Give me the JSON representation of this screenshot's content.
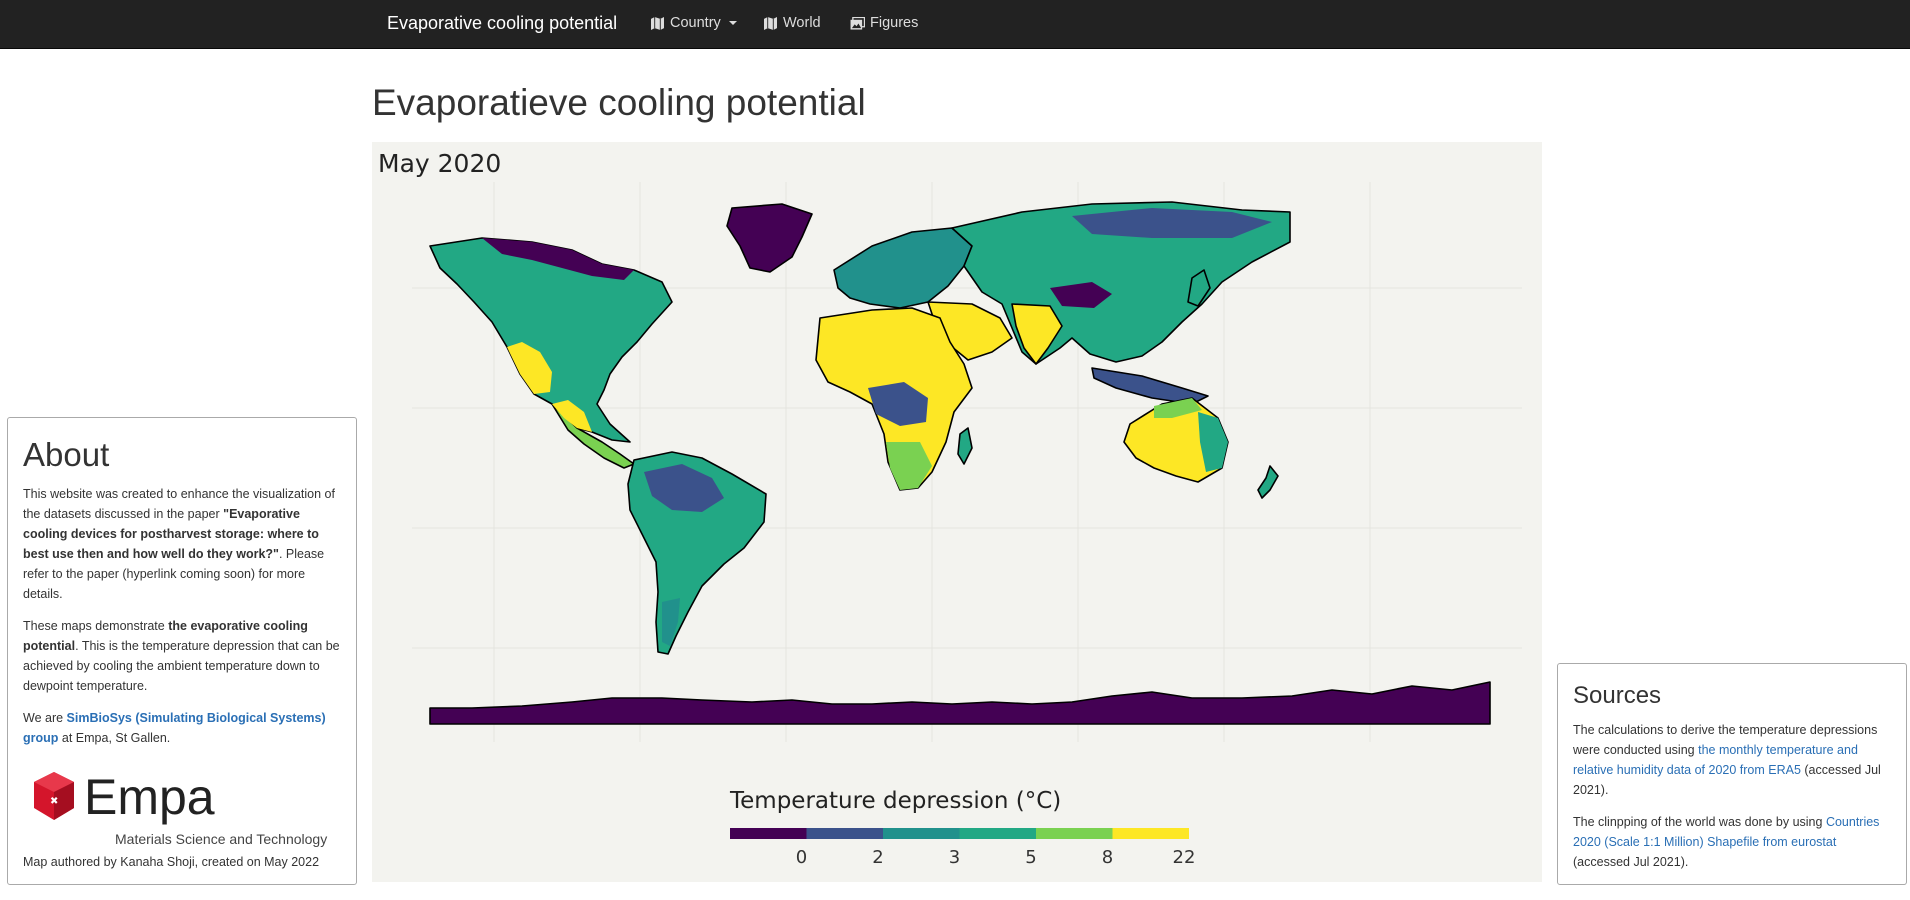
{
  "navbar": {
    "brand": "Evaporative cooling potential",
    "items": [
      {
        "label": "Country",
        "icon": "map-icon",
        "dropdown": true
      },
      {
        "label": "World",
        "icon": "map-icon"
      },
      {
        "label": "Figures",
        "icon": "images-icon"
      }
    ]
  },
  "page": {
    "title": "Evaporatieve cooling potential"
  },
  "map": {
    "title": "May 2020",
    "legend_title": "Temperature depression (°C)",
    "legend_ticks": [
      "0",
      "2",
      "3",
      "5",
      "8",
      "22"
    ],
    "legend_colors": [
      "#440154",
      "#3b528b",
      "#21918c",
      "#22a884",
      "#7ad151",
      "#fde725"
    ],
    "ocean_color": "#f3f3ef"
  },
  "about": {
    "title": "About",
    "p1_a": "This website was created to enhance the visualization of the datasets discussed in the paper ",
    "p1_b": "\"Evaporative cooling devices for postharvest storage: where to best use then and how well do they work?\"",
    "p1_c": ". Please refer to the paper (hyperlink coming soon) for more details.",
    "p2_a": "These maps demonstrate ",
    "p2_b": "the evaporative cooling potential",
    "p2_c": ". This is the temperature depression that can be achieved by cooling the ambient temperature down to dewpoint temperature.",
    "p3_a": "We are ",
    "p3_link": "SimBioSys (Simulating Biological Systems) group",
    "p3_c": " at Empa, St Gallen.",
    "logo_text": "Empa",
    "logo_subtitle": "Materials Science and Technology",
    "author": "Map authored by Kanaha Shoji, created on May 2022"
  },
  "sources": {
    "title": "Sources",
    "p1_a": "The calculations to derive the temperature depressions were conducted using ",
    "p1_link": "the monthly temperature and relative humidity data of 2020 from ERA5",
    "p1_c": " (accessed Jul 2021).",
    "p2_a": "The clinpping of the world was done by using ",
    "p2_link": "Countries 2020 (Scale 1:1 Million) Shapefile from eurostat",
    "p2_c": " (accessed Jul 2021)."
  }
}
